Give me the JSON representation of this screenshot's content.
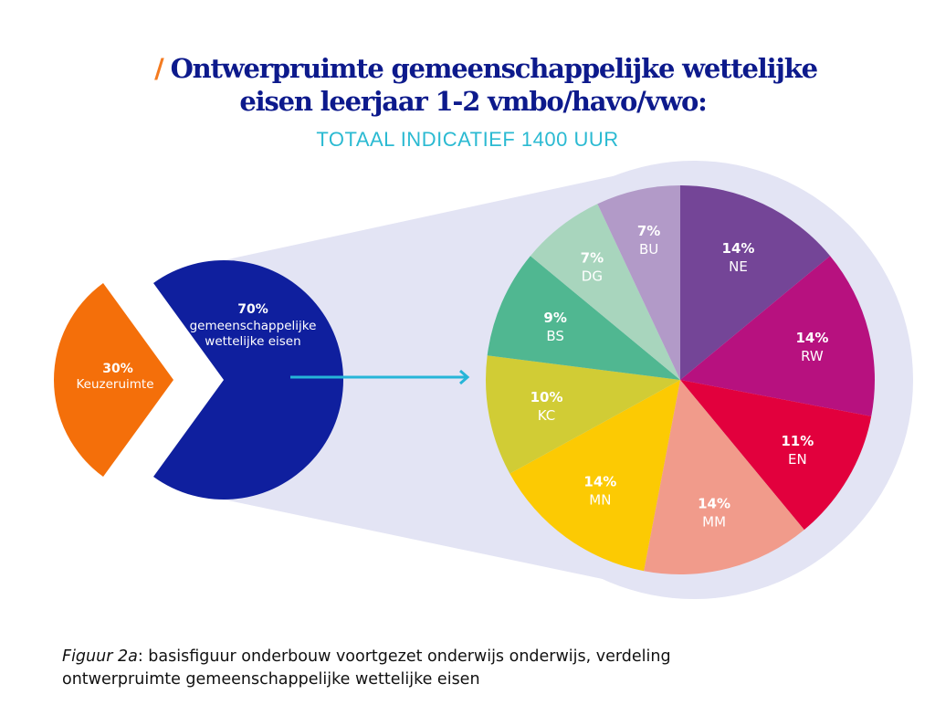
{
  "title_line1": "Ontwerpruimte gemeenschappelijke wettelijke",
  "title_line2": "eisen leerjaar 1-2 vmbo/havo/vwo:",
  "subtitle": "TOTAAL INDICATIEF 1400 UUR",
  "caption": {
    "label": "Figuur 2a",
    "text_line1": ": basisfiguur onderbouw voortgezet onderwijs onderwijs, verdeling",
    "text_line2": "ontwerpruimte gemeenschappelijke wettelijke eisen"
  },
  "chart_data": [
    {
      "type": "pie",
      "slices": [
        {
          "label": "Keuzeruimte",
          "value": 30,
          "value_label": "30%",
          "color": "#f46f0a"
        },
        {
          "label": "gemeenschappelijke wettelijke eisen",
          "value": 70,
          "value_label": "70%",
          "color": "#0f1f9e"
        }
      ]
    },
    {
      "type": "pie",
      "slices": [
        {
          "label": "NE",
          "value": 14,
          "value_label": "14%",
          "color": "#744597"
        },
        {
          "label": "RW",
          "value": 14,
          "value_label": "14%",
          "color": "#b7117f"
        },
        {
          "label": "EN",
          "value": 11,
          "value_label": "11%",
          "color": "#e2003d"
        },
        {
          "label": "MM",
          "value": 14,
          "value_label": "14%",
          "color": "#f19b8b"
        },
        {
          "label": "MN",
          "value": 14,
          "value_label": "14%",
          "color": "#fcca03"
        },
        {
          "label": "KC",
          "value": 10,
          "value_label": "10%",
          "color": "#d1cc35"
        },
        {
          "label": "BS",
          "value": 9,
          "value_label": "9%",
          "color": "#50b791"
        },
        {
          "label": "DG",
          "value": 7,
          "value_label": "7%",
          "color": "#a8d5bd"
        },
        {
          "label": "BU",
          "value": 7,
          "value_label": "7%",
          "color": "#b29ac8"
        }
      ]
    }
  ],
  "colors": {
    "title": "#0d1a8c",
    "subtitle": "#2bbad2",
    "arrow": "#26b5d8",
    "halo": "#e3e4f4",
    "accent_slash": "#f47b20"
  }
}
